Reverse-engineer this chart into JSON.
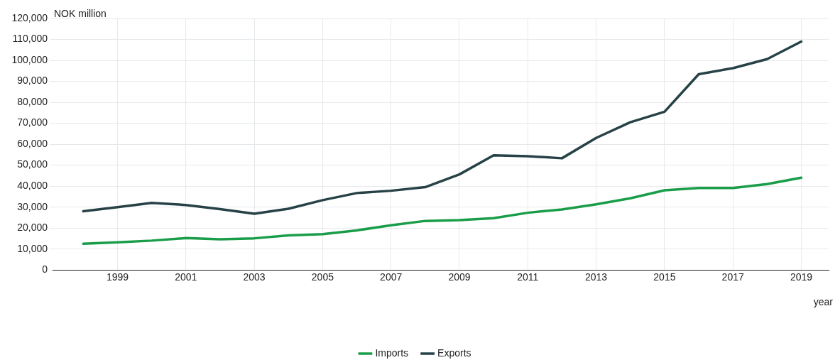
{
  "chart_data": {
    "type": "line",
    "xlabel": "year",
    "ylabel": "NOK million",
    "x": [
      1998,
      1999,
      2000,
      2001,
      2002,
      2003,
      2004,
      2005,
      2006,
      2007,
      2008,
      2009,
      2010,
      2011,
      2012,
      2013,
      2014,
      2015,
      2016,
      2017,
      2018,
      2019
    ],
    "series": [
      {
        "name": "Imports",
        "color": "#1a9d49",
        "values": [
          12500,
          13200,
          14000,
          15200,
          14600,
          15100,
          16500,
          17100,
          18900,
          21300,
          23400,
          23800,
          24700,
          27300,
          28900,
          31300,
          34200,
          38000,
          39100,
          39100,
          41000,
          44000
        ]
      },
      {
        "name": "Exports",
        "color": "#274247",
        "values": [
          28000,
          30000,
          32000,
          31000,
          29000,
          26800,
          29200,
          33300,
          36700,
          37800,
          39500,
          45600,
          54700,
          54300,
          53300,
          63000,
          70500,
          75500,
          93400,
          96300,
          100600,
          109000
        ]
      }
    ],
    "xlim": [
      1997.1,
      2019.8
    ],
    "xticks": [
      1999,
      2001,
      2003,
      2005,
      2007,
      2009,
      2011,
      2013,
      2015,
      2017,
      2019
    ],
    "ylim": [
      0,
      120000
    ],
    "yticks": [
      0,
      {
        "value": 10000,
        "label": "10,000"
      },
      {
        "value": 20000,
        "label": "20,000"
      },
      {
        "value": 30000,
        "label": "30,000"
      },
      {
        "value": 40000,
        "label": "40,000"
      },
      {
        "value": 50000,
        "label": "50,000"
      },
      {
        "value": 60000,
        "label": "60,000"
      },
      {
        "value": 70000,
        "label": "70,000"
      },
      {
        "value": 80000,
        "label": "80,000"
      },
      {
        "value": 90000,
        "label": "90,000"
      },
      {
        "value": 100000,
        "label": "100,000"
      },
      {
        "value": 110000,
        "label": "110,000"
      },
      {
        "value": 120000,
        "label": "120,000"
      }
    ],
    "grid": true,
    "legend": "bottom",
    "marker": "none",
    "line_style": "solid"
  }
}
